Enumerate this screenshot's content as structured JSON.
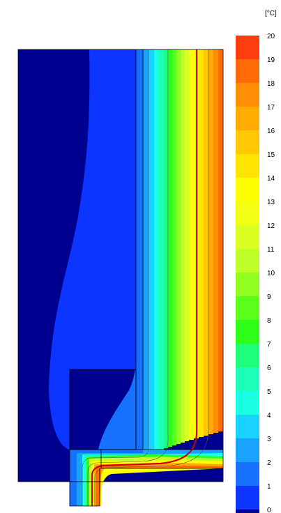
{
  "legend": {
    "unit": "[°C]",
    "labels": [
      "20",
      "19",
      "18",
      "17",
      "16",
      "15",
      "14",
      "13",
      "12",
      "11",
      "10",
      "9",
      "8",
      "7",
      "6",
      "5",
      "4",
      "3",
      "2",
      "1",
      "0"
    ],
    "colors": [
      "#ff3d10",
      "#ff6a08",
      "#ff8f04",
      "#ffab02",
      "#ffc802",
      "#ffe400",
      "#ffff00",
      "#f2ff14",
      "#dcff23",
      "#c0ff2a",
      "#90ff1f",
      "#5cff1c",
      "#2dff1a",
      "#1dff7a",
      "#1cffb8",
      "#1affe4",
      "#1ad2ff",
      "#1aa2ff",
      "#1671ff",
      "#0c35ff",
      "#000090"
    ]
  },
  "thermal": {
    "isotherm_color": "#cc0000"
  }
}
